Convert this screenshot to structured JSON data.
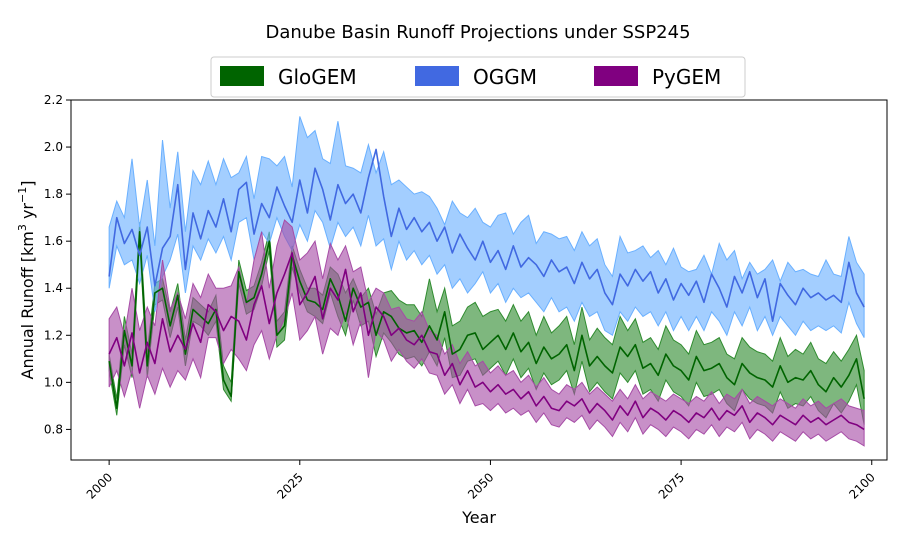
{
  "chart_data": {
    "type": "line",
    "title": "Danube Basin Runoff Projections under SSP245",
    "xlabel": "Year",
    "ylabel": "Annual Runoff [km",
    "ylabel_sup1": "3",
    "ylabel_mid": " yr",
    "ylabel_sup2": "−1",
    "ylabel_end": "]",
    "xlim": [
      1995,
      2102
    ],
    "ylim": [
      0.67,
      2.2
    ],
    "x_ticks": [
      2000,
      2025,
      2050,
      2075,
      2100
    ],
    "y_ticks": [
      0.8,
      1.0,
      1.2,
      1.4,
      1.6,
      1.8,
      2.0,
      2.2
    ],
    "x_tick_labels": [
      "2000",
      "2025",
      "2050",
      "2075",
      "2100"
    ],
    "y_tick_labels": [
      "0.8",
      "1.0",
      "1.2",
      "1.4",
      "1.6",
      "1.8",
      "2.0",
      "2.2"
    ],
    "grid": false,
    "legend_position": "top-center",
    "x_start": 2000,
    "x_end": 2099,
    "series": [
      {
        "name": "GloGEM",
        "color": "#006400",
        "band_color": "#2e8b2e",
        "mean": [
          1.09,
          0.89,
          1.22,
          1.07,
          1.64,
          1.07,
          1.38,
          1.4,
          1.24,
          1.37,
          1.12,
          1.31,
          1.28,
          1.25,
          1.31,
          1.01,
          0.94,
          1.47,
          1.34,
          1.36,
          1.46,
          1.6,
          1.2,
          1.24,
          1.54,
          1.43,
          1.35,
          1.34,
          1.31,
          1.44,
          1.37,
          1.26,
          1.4,
          1.32,
          1.34,
          1.2,
          1.3,
          1.28,
          1.23,
          1.21,
          1.22,
          1.17,
          1.24,
          1.18,
          1.3,
          1.12,
          1.14,
          1.2,
          1.21,
          1.14,
          1.17,
          1.2,
          1.14,
          1.21,
          1.13,
          1.17,
          1.08,
          1.15,
          1.1,
          1.12,
          1.16,
          1.05,
          1.2,
          1.07,
          1.11,
          1.07,
          1.04,
          1.15,
          1.11,
          1.16,
          1.06,
          1.08,
          1.03,
          1.12,
          1.07,
          1.05,
          1.01,
          1.11,
          1.05,
          1.06,
          1.08,
          1.02,
          0.99,
          1.08,
          1.04,
          1.02,
          1.01,
          0.98,
          1.07,
          1.0,
          1.02,
          1.01,
          1.05,
          0.99,
          0.96,
          1.02,
          0.98,
          1.03,
          1.1,
          0.93
        ],
        "upper": [
          1.12,
          0.93,
          1.28,
          1.12,
          1.68,
          1.13,
          1.42,
          1.44,
          1.3,
          1.42,
          1.18,
          1.36,
          1.33,
          1.3,
          1.37,
          1.07,
          1.0,
          1.52,
          1.39,
          1.41,
          1.51,
          1.64,
          1.26,
          1.3,
          1.58,
          1.48,
          1.4,
          1.4,
          1.37,
          1.49,
          1.46,
          1.38,
          1.44,
          1.36,
          1.4,
          1.29,
          1.38,
          1.39,
          1.35,
          1.33,
          1.33,
          1.28,
          1.44,
          1.3,
          1.4,
          1.24,
          1.26,
          1.32,
          1.34,
          1.28,
          1.3,
          1.31,
          1.26,
          1.33,
          1.26,
          1.3,
          1.2,
          1.28,
          1.21,
          1.24,
          1.28,
          1.16,
          1.32,
          1.18,
          1.23,
          1.19,
          1.16,
          1.28,
          1.22,
          1.27,
          1.17,
          1.19,
          1.14,
          1.24,
          1.18,
          1.16,
          1.12,
          1.22,
          1.16,
          1.17,
          1.19,
          1.12,
          1.1,
          1.19,
          1.15,
          1.13,
          1.12,
          1.09,
          1.19,
          1.11,
          1.14,
          1.12,
          1.17,
          1.1,
          1.08,
          1.13,
          1.09,
          1.14,
          1.2,
          1.05
        ],
        "lower": [
          1.05,
          0.86,
          1.16,
          1.02,
          1.6,
          1.02,
          1.33,
          1.35,
          1.19,
          1.32,
          1.07,
          1.26,
          1.24,
          1.2,
          1.26,
          0.97,
          0.92,
          1.42,
          1.29,
          1.31,
          1.41,
          1.56,
          1.15,
          1.18,
          1.49,
          1.38,
          1.3,
          1.28,
          1.25,
          1.38,
          1.28,
          1.2,
          1.35,
          1.24,
          1.26,
          1.11,
          1.21,
          1.17,
          1.12,
          1.1,
          1.11,
          1.07,
          1.13,
          1.07,
          1.19,
          1.02,
          1.03,
          1.09,
          1.1,
          1.03,
          1.06,
          1.09,
          1.03,
          1.1,
          1.02,
          1.06,
          0.97,
          1.04,
          0.99,
          1.01,
          1.05,
          0.95,
          1.09,
          0.96,
          1.0,
          0.96,
          0.93,
          1.04,
          1.0,
          1.05,
          0.95,
          0.97,
          0.92,
          1.01,
          0.96,
          0.94,
          0.9,
          1.0,
          0.94,
          0.95,
          0.97,
          0.91,
          0.88,
          0.97,
          0.93,
          0.91,
          0.9,
          0.87,
          0.96,
          0.89,
          0.91,
          0.9,
          0.94,
          0.88,
          0.85,
          0.91,
          0.87,
          0.92,
          0.99,
          0.82
        ]
      },
      {
        "name": "OGGM",
        "color": "#4169e1",
        "band_color": "#6ab0ff",
        "mean": [
          1.45,
          1.7,
          1.59,
          1.65,
          1.54,
          1.66,
          1.41,
          1.57,
          1.62,
          1.84,
          1.48,
          1.72,
          1.61,
          1.73,
          1.66,
          1.78,
          1.64,
          1.82,
          1.85,
          1.63,
          1.76,
          1.7,
          1.83,
          1.75,
          1.68,
          1.86,
          1.72,
          1.91,
          1.82,
          1.69,
          1.84,
          1.76,
          1.8,
          1.72,
          1.87,
          1.99,
          1.79,
          1.62,
          1.74,
          1.65,
          1.7,
          1.64,
          1.68,
          1.6,
          1.66,
          1.55,
          1.63,
          1.57,
          1.52,
          1.6,
          1.51,
          1.56,
          1.48,
          1.58,
          1.49,
          1.53,
          1.5,
          1.45,
          1.52,
          1.47,
          1.49,
          1.42,
          1.51,
          1.44,
          1.48,
          1.38,
          1.33,
          1.46,
          1.41,
          1.48,
          1.43,
          1.47,
          1.38,
          1.44,
          1.35,
          1.42,
          1.37,
          1.43,
          1.34,
          1.46,
          1.4,
          1.32,
          1.45,
          1.38,
          1.47,
          1.36,
          1.44,
          1.26,
          1.42,
          1.37,
          1.33,
          1.4,
          1.36,
          1.38,
          1.35,
          1.37,
          1.34,
          1.51,
          1.38,
          1.32
        ],
        "upper": [
          1.66,
          1.77,
          1.7,
          1.95,
          1.66,
          1.86,
          1.58,
          2.03,
          1.74,
          1.98,
          1.64,
          1.9,
          1.84,
          1.94,
          1.84,
          1.95,
          1.87,
          1.89,
          1.96,
          1.78,
          1.96,
          1.95,
          1.92,
          1.96,
          1.83,
          2.13,
          2.04,
          2.07,
          1.95,
          1.93,
          2.11,
          1.92,
          1.91,
          1.89,
          2.01,
          1.89,
          1.98,
          1.84,
          1.86,
          1.83,
          1.8,
          1.81,
          1.79,
          1.74,
          1.67,
          1.77,
          1.72,
          1.7,
          1.74,
          1.68,
          1.66,
          1.71,
          1.72,
          1.63,
          1.68,
          1.71,
          1.59,
          1.64,
          1.63,
          1.61,
          1.62,
          1.56,
          1.64,
          1.58,
          1.61,
          1.5,
          1.45,
          1.62,
          1.55,
          1.56,
          1.58,
          1.53,
          1.56,
          1.5,
          1.57,
          1.49,
          1.47,
          1.48,
          1.54,
          1.46,
          1.59,
          1.52,
          1.56,
          1.44,
          1.51,
          1.46,
          1.48,
          1.52,
          1.43,
          1.51,
          1.47,
          1.48,
          1.46,
          1.45,
          1.52,
          1.46,
          1.45,
          1.62,
          1.51,
          1.46
        ],
        "lower": [
          1.4,
          1.58,
          1.5,
          1.52,
          1.42,
          1.54,
          1.3,
          1.45,
          1.52,
          1.63,
          1.38,
          1.58,
          1.52,
          1.61,
          1.55,
          1.62,
          1.52,
          1.68,
          1.7,
          1.52,
          1.64,
          1.59,
          1.7,
          1.62,
          1.56,
          1.67,
          1.6,
          1.73,
          1.68,
          1.57,
          1.68,
          1.62,
          1.66,
          1.58,
          1.71,
          1.58,
          1.61,
          1.48,
          1.6,
          1.52,
          1.56,
          1.5,
          1.54,
          1.46,
          1.5,
          1.4,
          1.44,
          1.38,
          1.42,
          1.47,
          1.38,
          1.42,
          1.34,
          1.4,
          1.36,
          1.38,
          1.34,
          1.3,
          1.36,
          1.3,
          1.32,
          1.26,
          1.34,
          1.28,
          1.3,
          1.22,
          1.2,
          1.3,
          1.26,
          1.32,
          1.28,
          1.3,
          1.24,
          1.3,
          1.22,
          1.28,
          1.22,
          1.28,
          1.22,
          1.3,
          1.26,
          1.2,
          1.3,
          1.24,
          1.32,
          1.22,
          1.28,
          1.2,
          1.28,
          1.24,
          1.2,
          1.26,
          1.22,
          1.24,
          1.22,
          1.24,
          1.21,
          1.34,
          1.25,
          1.19
        ]
      },
      {
        "name": "PyGEM",
        "color": "#800080",
        "band_color": "#a64ca6",
        "mean": [
          1.12,
          1.19,
          1.07,
          1.21,
          1.04,
          1.17,
          1.08,
          1.27,
          1.13,
          1.2,
          1.14,
          1.25,
          1.17,
          1.33,
          1.3,
          1.22,
          1.28,
          1.26,
          1.18,
          1.33,
          1.41,
          1.25,
          1.38,
          1.46,
          1.55,
          1.33,
          1.38,
          1.45,
          1.27,
          1.4,
          1.35,
          1.48,
          1.3,
          1.38,
          1.2,
          1.32,
          1.28,
          1.2,
          1.23,
          1.18,
          1.16,
          1.2,
          1.13,
          1.12,
          1.03,
          1.08,
          0.99,
          1.05,
          0.98,
          1.0,
          0.96,
          0.99,
          0.95,
          0.97,
          0.93,
          0.96,
          0.9,
          0.94,
          0.89,
          0.88,
          0.92,
          0.9,
          0.93,
          0.87,
          0.91,
          0.88,
          0.84,
          0.9,
          0.86,
          0.92,
          0.85,
          0.89,
          0.87,
          0.84,
          0.88,
          0.86,
          0.83,
          0.87,
          0.85,
          0.89,
          0.84,
          0.88,
          0.86,
          0.9,
          0.83,
          0.87,
          0.85,
          0.82,
          0.86,
          0.84,
          0.82,
          0.86,
          0.83,
          0.85,
          0.82,
          0.84,
          0.86,
          0.83,
          0.82,
          0.8
        ],
        "upper": [
          1.27,
          1.32,
          1.2,
          1.4,
          1.22,
          1.32,
          1.24,
          1.52,
          1.31,
          1.38,
          1.27,
          1.42,
          1.36,
          1.46,
          1.4,
          1.4,
          1.41,
          1.49,
          1.33,
          1.52,
          1.64,
          1.4,
          1.58,
          1.69,
          1.66,
          1.52,
          1.55,
          1.6,
          1.44,
          1.59,
          1.52,
          1.58,
          1.47,
          1.49,
          1.34,
          1.4,
          1.38,
          1.31,
          1.32,
          1.27,
          1.26,
          1.3,
          1.22,
          1.2,
          1.12,
          1.16,
          1.08,
          1.13,
          1.07,
          1.09,
          1.04,
          1.07,
          1.03,
          1.05,
          1.0,
          1.03,
          0.98,
          1.02,
          0.97,
          0.95,
          0.99,
          0.97,
          1.0,
          0.95,
          0.98,
          0.95,
          0.92,
          0.97,
          0.93,
          0.99,
          0.93,
          0.96,
          0.94,
          0.92,
          0.95,
          0.93,
          0.91,
          0.94,
          0.92,
          0.96,
          0.91,
          0.95,
          0.93,
          0.97,
          0.91,
          0.94,
          0.92,
          0.9,
          0.93,
          0.91,
          0.89,
          0.93,
          0.9,
          0.92,
          0.89,
          0.91,
          0.93,
          0.9,
          0.89,
          0.88
        ],
        "lower": [
          0.98,
          1.05,
          0.94,
          1.05,
          0.89,
          1.03,
          0.95,
          1.06,
          0.98,
          1.05,
          1.01,
          1.1,
          1.02,
          1.19,
          1.19,
          1.08,
          1.14,
          1.1,
          1.05,
          1.16,
          1.22,
          1.1,
          1.2,
          1.27,
          1.38,
          1.18,
          1.22,
          1.28,
          1.12,
          1.23,
          1.2,
          1.3,
          1.16,
          1.26,
          1.02,
          1.22,
          1.18,
          1.09,
          1.14,
          1.09,
          1.06,
          1.1,
          1.04,
          1.03,
          0.95,
          0.99,
          0.91,
          0.97,
          0.9,
          0.91,
          0.88,
          0.91,
          0.87,
          0.89,
          0.86,
          0.88,
          0.83,
          0.87,
          0.82,
          0.81,
          0.85,
          0.83,
          0.86,
          0.8,
          0.84,
          0.81,
          0.77,
          0.83,
          0.79,
          0.85,
          0.78,
          0.82,
          0.8,
          0.77,
          0.81,
          0.79,
          0.76,
          0.8,
          0.78,
          0.82,
          0.77,
          0.81,
          0.79,
          0.83,
          0.76,
          0.8,
          0.78,
          0.75,
          0.79,
          0.77,
          0.75,
          0.79,
          0.76,
          0.78,
          0.75,
          0.77,
          0.79,
          0.76,
          0.75,
          0.73
        ]
      }
    ]
  }
}
